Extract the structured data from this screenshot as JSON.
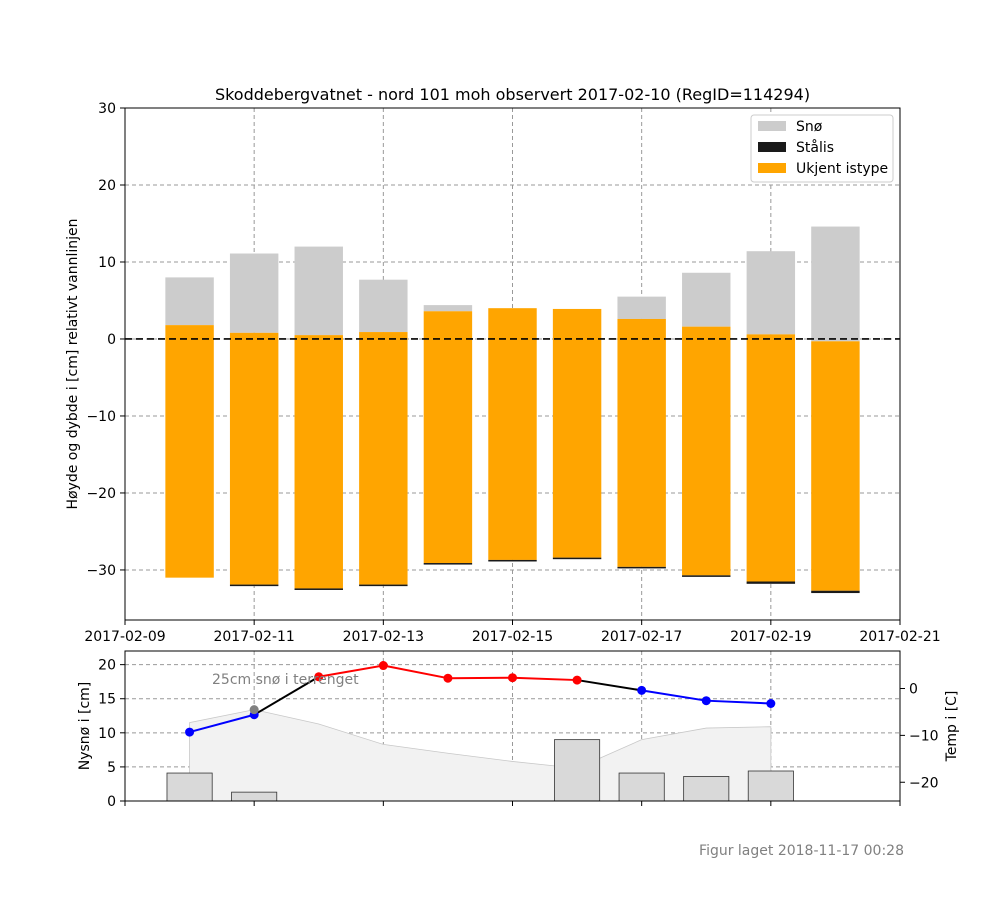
{
  "chart_data": [
    {
      "type": "bar",
      "title": "Skoddebergvatnet - nord 101 moh observert 2017-02-10 (RegID=114294)",
      "ylabel": "Høyde og dybde i [cm] relativt vannlinjen",
      "ylim": [
        -36.5,
        30
      ],
      "yticks": [
        30,
        20,
        10,
        0,
        -10,
        -20,
        -30
      ],
      "ytick_labels": [
        "30",
        "20",
        "10",
        "0",
        "−10",
        "−20",
        "−30"
      ],
      "xlim_days": [
        0,
        12
      ],
      "xticks_days": [
        0,
        2,
        4,
        6,
        8,
        10,
        12
      ],
      "xtick_labels": [
        "2017-02-09",
        "2017-02-11",
        "2017-02-13",
        "2017-02-15",
        "2017-02-17",
        "2017-02-19",
        "2017-02-21"
      ],
      "grid": true,
      "legend_position": "top-right",
      "legend": [
        {
          "label": "Snø",
          "color": "#cccccc"
        },
        {
          "label": "Stålis",
          "color": "#1a1a1a"
        },
        {
          "label": "Ukjent istype",
          "color": "#ffa500"
        }
      ],
      "bar_width_days": 0.75,
      "bars": [
        {
          "day": 1,
          "snow_top": 8.0,
          "ice_top": 1.8,
          "ice_bottom": -31.0,
          "black_ice_cm": 0.0
        },
        {
          "day": 2,
          "snow_top": 11.1,
          "ice_top": 0.8,
          "ice_bottom": -32.1,
          "black_ice_cm": 0.2
        },
        {
          "day": 3,
          "snow_top": 12.0,
          "ice_top": 0.5,
          "ice_bottom": -32.6,
          "black_ice_cm": 0.2
        },
        {
          "day": 4,
          "snow_top": 7.7,
          "ice_top": 0.9,
          "ice_bottom": -32.1,
          "black_ice_cm": 0.2
        },
        {
          "day": 5,
          "snow_top": 4.4,
          "ice_top": 3.6,
          "ice_bottom": -29.3,
          "black_ice_cm": 0.2
        },
        {
          "day": 6,
          "snow_top": 4.0,
          "ice_top": 4.0,
          "ice_bottom": -28.9,
          "black_ice_cm": 0.2
        },
        {
          "day": 7,
          "snow_top": 3.9,
          "ice_top": 3.9,
          "ice_bottom": -28.6,
          "black_ice_cm": 0.2
        },
        {
          "day": 8,
          "snow_top": 5.5,
          "ice_top": 2.6,
          "ice_bottom": -29.8,
          "black_ice_cm": 0.2
        },
        {
          "day": 9,
          "snow_top": 8.6,
          "ice_top": 1.6,
          "ice_bottom": -30.9,
          "black_ice_cm": 0.2
        },
        {
          "day": 10,
          "snow_top": 11.4,
          "ice_top": 0.6,
          "ice_bottom": -31.8,
          "black_ice_cm": 0.3
        },
        {
          "day": 11,
          "snow_top": 14.6,
          "ice_top": -0.3,
          "ice_bottom": -33.0,
          "black_ice_cm": 0.3
        }
      ]
    },
    {
      "type": "bar+line",
      "ylabel_left": "Nysnø i [cm]",
      "ylabel_right": "Temp i [C]",
      "ylim_left": [
        0,
        22
      ],
      "yticks_left": [
        0,
        5,
        10,
        15,
        20
      ],
      "ylim_right": [
        -24,
        8
      ],
      "yticks_right": [
        0,
        -10,
        -20
      ],
      "ytick_labels_right": [
        "0",
        "−10",
        "−20"
      ],
      "xlim_days": [
        0,
        12
      ],
      "annotation": "25cm snø i terrenget",
      "annotation_marker": {
        "day": 2,
        "value": 13.4
      },
      "new_snow_bars": [
        {
          "day": 1,
          "value": 4.1
        },
        {
          "day": 2,
          "value": 1.3
        },
        {
          "day": 7,
          "value": 9.0
        },
        {
          "day": 8,
          "value": 4.1
        },
        {
          "day": 9,
          "value": 3.6
        },
        {
          "day": 10,
          "value": 4.4
        }
      ],
      "terrain_snow_area": {
        "days": [
          1,
          2,
          3,
          4,
          5,
          6,
          7,
          8,
          9,
          10
        ],
        "values": [
          11.5,
          13.4,
          11.3,
          8.3,
          7.0,
          5.8,
          4.8,
          9.0,
          10.7,
          10.9
        ]
      },
      "temperature": {
        "days": [
          1,
          2,
          3,
          4,
          5,
          6,
          7,
          8,
          9,
          10
        ],
        "values": [
          -9.3,
          -5.6,
          2.5,
          4.9,
          2.2,
          2.3,
          1.8,
          -0.4,
          -2.6,
          -3.2
        ],
        "line_color": "#000000",
        "cold_color": "#0000ff",
        "warm_color": "#ff0000"
      }
    }
  ],
  "footer": "Figur laget 2018-11-17 00:28"
}
